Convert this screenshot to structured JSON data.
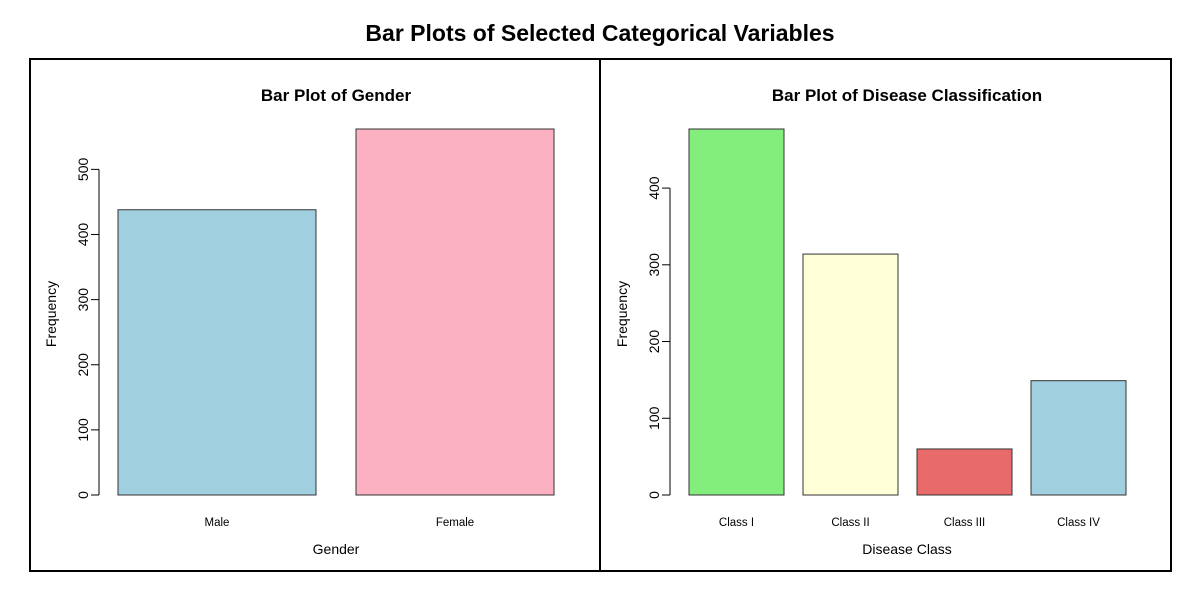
{
  "figure": {
    "title": "Bar Plots of Selected Categorical Variables"
  },
  "chart_data": [
    {
      "type": "bar",
      "title": "Bar Plot of Gender",
      "xlabel": "Gender",
      "ylabel": "Frequency",
      "categories": [
        "Male",
        "Female"
      ],
      "values": [
        438,
        562
      ],
      "colors": [
        "#a0cfe0",
        "#fcb1c3"
      ],
      "ylim": [
        0,
        562
      ],
      "yticks": [
        0,
        100,
        200,
        300,
        400,
        500
      ],
      "grid": false,
      "legend": "none"
    },
    {
      "type": "bar",
      "title": "Bar Plot of Disease Classification",
      "xlabel": "Disease Class",
      "ylabel": "Frequency",
      "categories": [
        "Class I",
        "Class II",
        "Class III",
        "Class IV"
      ],
      "values": [
        477,
        314,
        60,
        149
      ],
      "colors": [
        "#83ee7c",
        "#ffffd8",
        "#e96a6b",
        "#a0cfe0"
      ],
      "ylim": [
        0,
        477
      ],
      "yticks": [
        0,
        100,
        200,
        300,
        400
      ],
      "grid": false,
      "legend": "none"
    }
  ]
}
